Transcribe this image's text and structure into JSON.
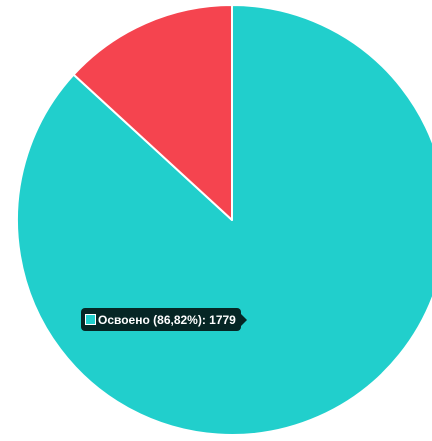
{
  "chart_data": {
    "type": "pie",
    "slices": [
      {
        "name": "Освоено",
        "value": 1779,
        "percent": 86.82,
        "color": "#21CFCC"
      },
      {
        "name": "",
        "value": 270,
        "percent": 13.18,
        "color": "#F5444F"
      }
    ],
    "start_angle_deg": -90,
    "tooltip": {
      "text": "Освоено (86,82%): 1779",
      "color": "#21CFCC"
    }
  }
}
